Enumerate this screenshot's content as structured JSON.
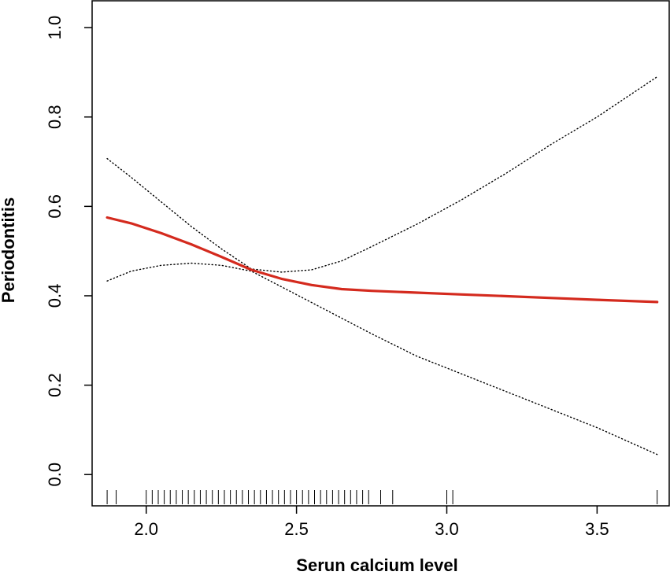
{
  "chart_data": {
    "type": "line",
    "title": "",
    "xlabel": "Serun calcium level",
    "ylabel": "Periodontitis",
    "xlim": [
      1.82,
      3.74
    ],
    "ylim": [
      -0.07,
      1.06
    ],
    "x_ticks": [
      2.0,
      2.5,
      3.0,
      3.5
    ],
    "x_tick_labels": [
      "2.0",
      "2.5",
      "3.0",
      "3.5"
    ],
    "y_ticks": [
      0.0,
      0.2,
      0.4,
      0.6,
      0.8,
      1.0
    ],
    "y_tick_labels": [
      "0.0",
      "0.2",
      "0.4",
      "0.6",
      "0.8",
      "1.0"
    ],
    "grid": false,
    "legend": "none",
    "series": [
      {
        "role": "estimate",
        "color": "#d42a1e",
        "style": "solid",
        "x": [
          1.87,
          1.95,
          2.05,
          2.15,
          2.25,
          2.35,
          2.45,
          2.55,
          2.65,
          2.75,
          2.9,
          3.05,
          3.2,
          3.35,
          3.5,
          3.7
        ],
        "y": [
          0.575,
          0.562,
          0.54,
          0.515,
          0.487,
          0.458,
          0.438,
          0.424,
          0.415,
          0.411,
          0.407,
          0.403,
          0.399,
          0.395,
          0.391,
          0.386
        ]
      },
      {
        "role": "upper-ci",
        "color": "#000000",
        "style": "dotted",
        "x": [
          1.87,
          1.95,
          2.05,
          2.15,
          2.25,
          2.35,
          2.45,
          2.55,
          2.65,
          2.75,
          2.9,
          3.05,
          3.2,
          3.35,
          3.5,
          3.7
        ],
        "y": [
          0.707,
          0.665,
          0.61,
          0.555,
          0.505,
          0.46,
          0.453,
          0.458,
          0.478,
          0.51,
          0.56,
          0.615,
          0.675,
          0.74,
          0.8,
          0.89
        ]
      },
      {
        "role": "lower-ci",
        "color": "#000000",
        "style": "dotted",
        "x": [
          1.87,
          1.95,
          2.05,
          2.15,
          2.25,
          2.35,
          2.45,
          2.55,
          2.65,
          2.75,
          2.9,
          3.05,
          3.2,
          3.35,
          3.5,
          3.7
        ],
        "y": [
          0.433,
          0.455,
          0.468,
          0.473,
          0.468,
          0.455,
          0.42,
          0.385,
          0.35,
          0.315,
          0.265,
          0.225,
          0.185,
          0.145,
          0.105,
          0.045
        ]
      }
    ],
    "rug": [
      1.87,
      1.9,
      2.0,
      2.02,
      2.04,
      2.06,
      2.08,
      2.1,
      2.12,
      2.14,
      2.16,
      2.18,
      2.2,
      2.22,
      2.24,
      2.26,
      2.28,
      2.3,
      2.32,
      2.34,
      2.36,
      2.38,
      2.4,
      2.42,
      2.44,
      2.46,
      2.48,
      2.5,
      2.52,
      2.54,
      2.56,
      2.58,
      2.6,
      2.62,
      2.64,
      2.66,
      2.68,
      2.7,
      2.72,
      2.74,
      2.78,
      2.82,
      3.0,
      3.02,
      3.7
    ]
  }
}
